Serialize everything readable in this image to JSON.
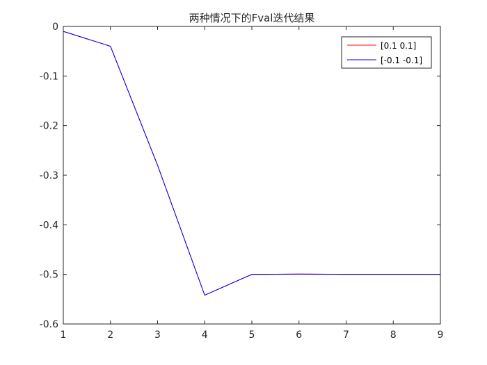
{
  "chart_data": {
    "type": "line",
    "title": "两种情况下的Fval迭代结果",
    "xlabel": "",
    "ylabel": "",
    "x": [
      1,
      2,
      3,
      4,
      5,
      6,
      7,
      8,
      9
    ],
    "xlim": [
      1,
      9
    ],
    "ylim": [
      -0.6,
      0
    ],
    "xticks": [
      1,
      2,
      3,
      4,
      5,
      6,
      7,
      8,
      9
    ],
    "yticks": [
      0,
      -0.1,
      -0.2,
      -0.3,
      -0.4,
      -0.5,
      -0.6
    ],
    "xtick_labels": [
      "1",
      "2",
      "3",
      "4",
      "5",
      "6",
      "7",
      "8",
      "9"
    ],
    "ytick_labels": [
      "0",
      "-0.1",
      "-0.2",
      "-0.3",
      "-0.4",
      "-0.5",
      "-0.6"
    ],
    "grid": false,
    "legend_position": "top-right",
    "series": [
      {
        "name": "[0.1 0.1]",
        "color": "#ff0000",
        "values": [
          -0.01,
          -0.04,
          -0.28,
          -0.542,
          -0.5,
          -0.4995,
          -0.5,
          -0.5,
          -0.5
        ]
      },
      {
        "name": "[-0.1 -0.1]",
        "color": "#0000ff",
        "values": [
          -0.01,
          -0.04,
          -0.28,
          -0.542,
          -0.5,
          -0.4995,
          -0.5,
          -0.5,
          -0.5
        ]
      }
    ]
  }
}
